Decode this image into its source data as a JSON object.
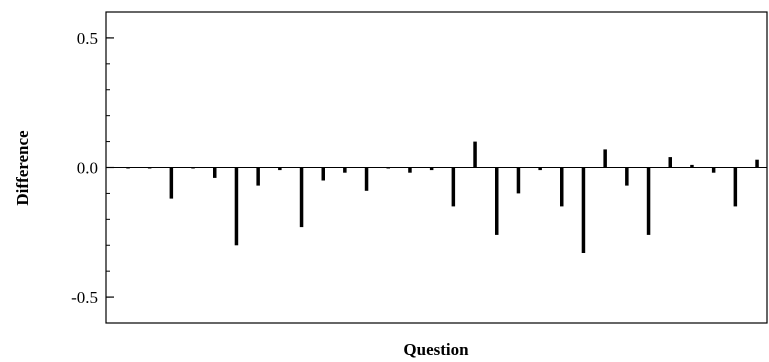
{
  "chart_data": {
    "type": "bar",
    "xlabel": "Question",
    "ylabel": "Difference",
    "ylim": [
      -0.6,
      0.6
    ],
    "yticks": [
      {
        "value": 0.5,
        "label": "0.5"
      },
      {
        "value": 0.0,
        "label": "0.0"
      },
      {
        "value": -0.5,
        "label": "-0.5"
      }
    ],
    "minor_tick_step": 0.1,
    "grid": false,
    "zero_line": true,
    "bar_color": "#000000",
    "values": [
      0.0,
      0.0,
      -0.12,
      0.0,
      -0.04,
      -0.3,
      -0.07,
      -0.01,
      -0.23,
      -0.05,
      -0.02,
      -0.09,
      0.0,
      -0.02,
      -0.01,
      -0.15,
      0.1,
      -0.26,
      -0.1,
      -0.01,
      -0.15,
      -0.33,
      0.07,
      -0.07,
      -0.26,
      0.04,
      0.01,
      -0.02,
      -0.15,
      0.03
    ]
  }
}
